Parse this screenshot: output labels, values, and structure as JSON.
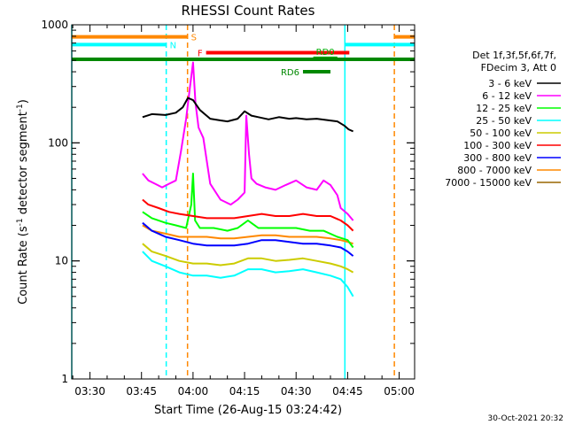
{
  "chart_data": {
    "type": "line",
    "title": "RHESSI Count Rates",
    "xlabel": "Start Time (26-Aug-15 03:24:42)",
    "ylabel_main": "Count Rate (s",
    "ylabel_sup1": "-1",
    "ylabel_mid": " detector segment",
    "ylabel_sup2": "-1",
    "ylabel_end": ")",
    "xlim_minutes": [
      204.7,
      304.5
    ],
    "ylim": [
      1,
      1000
    ],
    "yscale": "log",
    "x_ticks": [
      {
        "minutes": 210,
        "label": "03:30"
      },
      {
        "minutes": 225,
        "label": "03:45"
      },
      {
        "minutes": 240,
        "label": "04:00"
      },
      {
        "minutes": 255,
        "label": "04:15"
      },
      {
        "minutes": 270,
        "label": "04:30"
      },
      {
        "minutes": 285,
        "label": "04:45"
      },
      {
        "minutes": 300,
        "label": "05:00"
      }
    ],
    "y_ticks": [
      {
        "value": 1,
        "label": "1"
      },
      {
        "value": 10,
        "label": "10"
      },
      {
        "value": 100,
        "label": "100"
      },
      {
        "value": 1000,
        "label": "1000"
      }
    ],
    "legend_header": [
      "Det 1f,3f,5f,6f,7f,",
      "FDecim 3, Att 0"
    ],
    "series": [
      {
        "name": "3 - 6 keV",
        "color": "#000000",
        "x": [
          225.3,
          228,
          232,
          235,
          237,
          238.5,
          240,
          242,
          245,
          248,
          250,
          253,
          255,
          257,
          259,
          262,
          265,
          268,
          270,
          273,
          276,
          279,
          282,
          284,
          285.3,
          286.6
        ],
        "y": [
          165,
          175,
          172,
          180,
          200,
          240,
          230,
          190,
          160,
          155,
          152,
          160,
          185,
          170,
          165,
          158,
          165,
          160,
          162,
          158,
          160,
          156,
          152,
          140,
          130,
          125
        ]
      },
      {
        "name": "6 - 12 keV",
        "color": "#ff00ff",
        "x": [
          225.3,
          227,
          229,
          231,
          233,
          235,
          236.5,
          238,
          239,
          240,
          240.7,
          241.6,
          243,
          245,
          248,
          251,
          253,
          255,
          255.5,
          256.3,
          257,
          258.5,
          261,
          264,
          267,
          270,
          273,
          276,
          278,
          280,
          282,
          283,
          285,
          286.6
        ],
        "y": [
          55,
          48,
          45,
          42,
          45,
          48,
          85,
          160,
          280,
          480,
          220,
          135,
          110,
          45,
          33,
          30,
          33,
          38,
          170,
          80,
          50,
          45,
          42,
          40,
          44,
          48,
          42,
          40,
          48,
          44,
          36,
          28,
          25,
          22
        ]
      },
      {
        "name": "12 - 25 keV",
        "color": "#00ff00",
        "x": [
          225.3,
          228,
          232,
          235,
          238,
          239.5,
          240,
          240.6,
          242,
          246,
          250,
          253,
          256,
          259,
          262,
          266,
          270,
          274,
          278,
          282,
          285,
          286.6
        ],
        "y": [
          26,
          23,
          21,
          20,
          19,
          30,
          55,
          22,
          19,
          19,
          18,
          19,
          22,
          19,
          19,
          19,
          19,
          18,
          18,
          16,
          15,
          13
        ]
      },
      {
        "name": "25 - 50 keV",
        "color": "#00ffff",
        "x": [
          225.3,
          228,
          232,
          236,
          240,
          244,
          248,
          252,
          256,
          260,
          264,
          268,
          272,
          276,
          280,
          283,
          285,
          286.6
        ],
        "y": [
          12,
          10,
          9,
          8,
          7.5,
          7.5,
          7.2,
          7.5,
          8.5,
          8.5,
          8,
          8.2,
          8.5,
          8,
          7.5,
          7,
          6,
          5
        ]
      },
      {
        "name": "50 - 100 keV",
        "color": "#cccc00",
        "x": [
          225.3,
          228,
          232,
          236,
          240,
          244,
          248,
          252,
          256,
          260,
          264,
          268,
          272,
          276,
          280,
          283,
          285,
          286.6
        ],
        "y": [
          14,
          12,
          11,
          10,
          9.5,
          9.5,
          9.2,
          9.5,
          10.5,
          10.5,
          10,
          10.2,
          10.5,
          10,
          9.5,
          9,
          8.5,
          8
        ]
      },
      {
        "name": "100 - 300 keV",
        "color": "#ff0000",
        "x": [
          225.3,
          227,
          230,
          233,
          236,
          240,
          244,
          248,
          252,
          256,
          260,
          264,
          268,
          272,
          276,
          280,
          283,
          285,
          286.6
        ],
        "y": [
          33,
          30,
          28,
          26,
          25,
          24,
          23,
          23,
          23,
          24,
          25,
          24,
          24,
          25,
          24,
          24,
          22,
          20,
          18
        ]
      },
      {
        "name": "300 - 800 keV",
        "color": "#0000ff",
        "x": [
          225.3,
          228,
          232,
          236,
          240,
          244,
          248,
          252,
          256,
          260,
          264,
          268,
          272,
          276,
          280,
          283,
          285,
          286.6
        ],
        "y": [
          21,
          18,
          16,
          15,
          14,
          13.5,
          13.5,
          13.5,
          14,
          15,
          15,
          14.5,
          14,
          14,
          13.5,
          13,
          12,
          11
        ]
      },
      {
        "name": "800 - 7000 keV",
        "color": "#ff8800",
        "x": [
          225.3,
          228,
          232,
          236,
          240,
          244,
          248,
          252,
          256,
          260,
          264,
          268,
          272,
          276,
          280,
          283,
          285,
          286.6
        ],
        "y": [
          20,
          18,
          17,
          16,
          16,
          16,
          15.5,
          15.5,
          16,
          16.5,
          16.5,
          16,
          16,
          16,
          15.5,
          15,
          14.5,
          14
        ]
      },
      {
        "name": "7000 - 15000 keV",
        "color": "#996600",
        "x": [],
        "y": []
      }
    ],
    "vertical_markers": [
      {
        "minutes": 204.7,
        "color": "#00ffff",
        "style": "solid"
      },
      {
        "minutes": 232.2,
        "color": "#00ffff",
        "style": "dashed"
      },
      {
        "minutes": 284.2,
        "color": "#00ffff",
        "style": "solid"
      },
      {
        "minutes": 298.6,
        "color": "#ff8800",
        "style": "dashed"
      },
      {
        "minutes": 238.4,
        "color": "#ff8800",
        "style": "dashed"
      }
    ],
    "flag_bars": [
      {
        "label": "S",
        "color": "#ff8800",
        "x0": 204.7,
        "x1": 238.4,
        "y": 790,
        "label_side": "right"
      },
      {
        "label": "N",
        "color": "#00ffff",
        "x0": 204.7,
        "x1": 232.2,
        "y": 680,
        "label_side": "right"
      },
      {
        "label": "F",
        "color": "#ff0000",
        "x0": 243.8,
        "x1": 285.5,
        "y": 580,
        "label_side": "left"
      },
      {
        "label": "RD0",
        "color": "#00aa00",
        "x0": 275.0,
        "x1": 282.0,
        "y": 520,
        "label_side": "above"
      },
      {
        "label": "RD6",
        "color": "#008800",
        "x0": 272.0,
        "x1": 280.0,
        "y": 400,
        "label_side": "left"
      },
      {
        "label": "",
        "color": "#008800",
        "x0": 204.7,
        "x1": 304.5,
        "y": 510,
        "label_side": "none"
      },
      {
        "label": "",
        "color": "#00ffff",
        "x0": 284.2,
        "x1": 304.5,
        "y": 680,
        "label_side": "none"
      },
      {
        "label": "",
        "color": "#ff8800",
        "x0": 298.6,
        "x1": 304.5,
        "y": 790,
        "label_side": "none"
      }
    ]
  },
  "footer_timestamp": "30-Oct-2021 20:32"
}
